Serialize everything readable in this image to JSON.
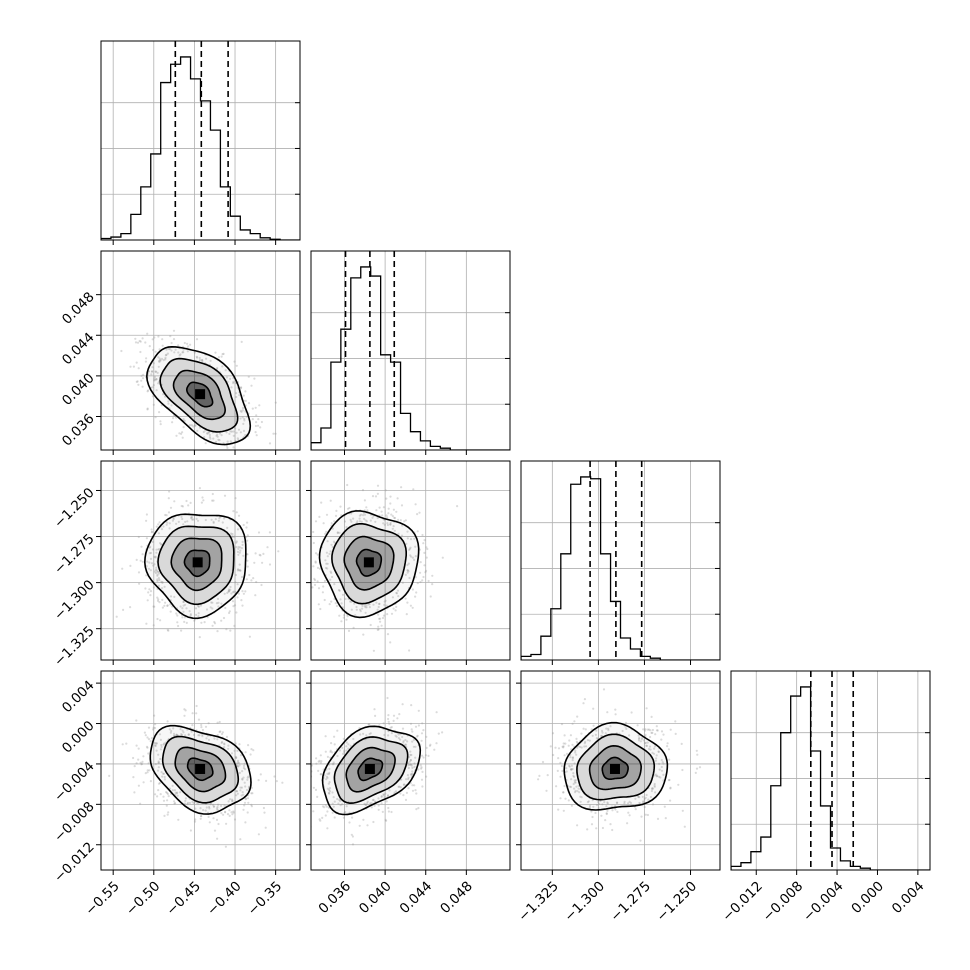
{
  "chart_data": {
    "type": "corner",
    "variables": [
      {
        "range": [
          -0.565,
          -0.32
        ],
        "ticks": [
          -0.55,
          -0.5,
          -0.45,
          -0.4,
          -0.35
        ],
        "tick_labels": [
          "−0.55",
          "−0.50",
          "−0.45",
          "−0.40",
          "−0.35"
        ],
        "quantiles": [
          -0.4735,
          -0.4415,
          -0.4085
        ],
        "hist": {
          "bins": 20,
          "relative_heights": [
            0.008,
            0.016,
            0.035,
            0.14,
            0.29,
            0.47,
            0.86,
            0.96,
            1.0,
            0.88,
            0.76,
            0.6,
            0.29,
            0.13,
            0.055,
            0.035,
            0.012,
            0.004,
            0.0,
            0.0
          ]
        }
      },
      {
        "range": [
          0.0327,
          0.0523
        ],
        "ticks": [
          0.036,
          0.04,
          0.044,
          0.048
        ],
        "tick_labels": [
          "0.036",
          "0.040",
          "0.044",
          "0.048"
        ],
        "quantiles": [
          0.0361,
          0.0385,
          0.0409
        ],
        "hist": {
          "bins": 20,
          "relative_heights": [
            0.04,
            0.12,
            0.48,
            0.66,
            0.94,
            1.0,
            0.95,
            0.52,
            0.48,
            0.2,
            0.1,
            0.05,
            0.02,
            0.01,
            0.0,
            0.0,
            0.0,
            0.0,
            0.0,
            0.0
          ]
        }
      },
      {
        "range": [
          -1.342,
          -1.234
        ],
        "ticks": [
          -1.325,
          -1.3,
          -1.275,
          -1.25
        ],
        "tick_labels": [
          "−1.325",
          "−1.300",
          "−1.275",
          "−1.250"
        ],
        "quantiles": [
          -1.3045,
          -1.2905,
          -1.2765
        ],
        "hist": {
          "bins": 20,
          "relative_heights": [
            0.02,
            0.03,
            0.13,
            0.28,
            0.58,
            0.96,
            1.0,
            0.99,
            0.58,
            0.32,
            0.12,
            0.06,
            0.02,
            0.01,
            0.0,
            0.0,
            0.0,
            0.0,
            0.0,
            0.0
          ]
        }
      },
      {
        "range": [
          -0.0145,
          0.0052
        ],
        "ticks": [
          -0.012,
          -0.008,
          -0.004,
          0.0,
          0.004
        ],
        "tick_labels": [
          "−0.012",
          "−0.008",
          "−0.004",
          "0.000",
          "0.004"
        ],
        "quantiles": [
          -0.0066,
          -0.0045,
          -0.0024
        ],
        "hist": {
          "bins": 20,
          "relative_heights": [
            0.02,
            0.04,
            0.1,
            0.18,
            0.46,
            0.75,
            0.95,
            1.0,
            0.65,
            0.35,
            0.12,
            0.05,
            0.02,
            0.01,
            0.0,
            0.0,
            0.0,
            0.0,
            0.0,
            0.0
          ]
        }
      }
    ],
    "pairs": [
      {
        "row": 1,
        "col": 0,
        "center": [
          -0.443,
          0.0382
        ],
        "sigma": [
          0.031,
          0.0024
        ],
        "correlation": -0.5
      },
      {
        "row": 2,
        "col": 0,
        "center": [
          -0.446,
          -1.289
        ],
        "sigma": [
          0.031,
          0.014
        ],
        "correlation": 0.0
      },
      {
        "row": 2,
        "col": 1,
        "center": [
          0.0384,
          -1.289
        ],
        "sigma": [
          0.0024,
          0.014
        ],
        "correlation": 0.0
      },
      {
        "row": 3,
        "col": 0,
        "center": [
          -0.443,
          -0.0045
        ],
        "sigma": [
          0.031,
          0.0021
        ],
        "correlation": -0.3
      },
      {
        "row": 3,
        "col": 1,
        "center": [
          0.0385,
          -0.0045
        ],
        "sigma": [
          0.0024,
          0.0021
        ],
        "correlation": 0.35
      },
      {
        "row": 3,
        "col": 2,
        "center": [
          -1.291,
          -0.0045
        ],
        "sigma": [
          0.014,
          0.0021
        ],
        "correlation": 0.05
      }
    ],
    "contour_levels_sigma": [
      0.5,
      1.0,
      1.5,
      2.0
    ],
    "grid": true,
    "colors": {
      "points": "#999999",
      "contours": "#000000",
      "density": "#000000",
      "grid": "#b0b0b0"
    }
  }
}
